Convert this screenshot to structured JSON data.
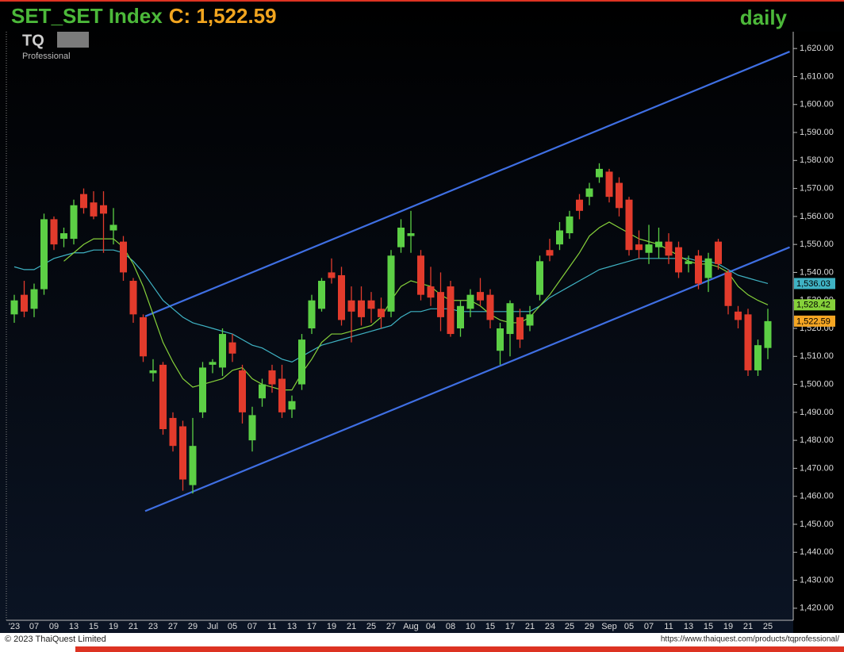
{
  "chart_data": {
    "type": "candlestick",
    "title": "SET_SET Index",
    "close_text": "C: 1,522.59",
    "period": "daily",
    "logo": "TQ",
    "logo_sub": "Professional",
    "copyright": "© 2023 ThaiQuest Limited",
    "url": "https://www.thaiquest.com/products/tqprofessional/",
    "up_color": "#5ccf45",
    "down_color": "#e23b2c",
    "categories": [
      "'23",
      null,
      "07",
      null,
      "09",
      null,
      "13",
      null,
      "15",
      null,
      "19",
      null,
      "21",
      null,
      "23",
      null,
      "27",
      null,
      "29",
      null,
      "Jul",
      null,
      "05",
      null,
      "07",
      null,
      "11",
      null,
      "13",
      null,
      "17",
      null,
      "19",
      null,
      "21",
      null,
      "25",
      null,
      "27",
      null,
      "Aug",
      null,
      "04",
      null,
      "08",
      null,
      "10",
      null,
      "15",
      null,
      "17",
      null,
      "21",
      null,
      "23",
      null,
      "25",
      null,
      "29",
      null,
      "Sep",
      null,
      "05",
      null,
      "07",
      null,
      "11",
      null,
      "13",
      null,
      "15",
      null,
      "19",
      null,
      "21",
      null,
      "25"
    ],
    "open": [
      1525,
      1532,
      1527,
      1534,
      1559,
      1552,
      1552,
      1568,
      1565,
      1564,
      1555,
      1551,
      1537,
      1524,
      1504,
      1507,
      1488,
      1485,
      1464,
      1490,
      1507,
      1506,
      1515,
      1505,
      1480,
      1495,
      1505,
      1502,
      1491,
      1500,
      1520,
      1527,
      1540,
      1539,
      1530,
      1530,
      1530,
      1527,
      1526,
      1549,
      1553,
      1546,
      1535,
      1533,
      1535,
      1520,
      1527,
      1533,
      1532,
      1512,
      1518,
      1524,
      1521,
      1532,
      1548,
      1550,
      1554,
      1566,
      1567,
      1574,
      1576,
      1572,
      1566,
      1550,
      1547,
      1549,
      1551,
      1549,
      1543,
      1546,
      1538,
      1551,
      1540,
      1526,
      1525,
      1505,
      1513
    ],
    "high": [
      1532,
      1537,
      1536,
      1561,
      1560,
      1556,
      1566,
      1570,
      1569,
      1569,
      1563,
      1553,
      1538,
      1525,
      1509,
      1508,
      1490,
      1487,
      1488,
      1508,
      1509,
      1520,
      1518,
      1507,
      1492,
      1502,
      1507,
      1507,
      1496,
      1518,
      1532,
      1538,
      1545,
      1542,
      1535,
      1535,
      1533,
      1531,
      1548,
      1559,
      1562,
      1548,
      1542,
      1540,
      1537,
      1530,
      1534,
      1538,
      1534,
      1522,
      1530,
      1527,
      1528,
      1546,
      1552,
      1558,
      1562,
      1568,
      1572,
      1579,
      1577,
      1574,
      1567,
      1555,
      1557,
      1556,
      1554,
      1551,
      1546,
      1548,
      1547,
      1552,
      1541,
      1528,
      1527,
      1516,
      1527
    ],
    "low": [
      1522,
      1524,
      1524,
      1532,
      1548,
      1549,
      1550,
      1561,
      1559,
      1547,
      1550,
      1537,
      1522,
      1508,
      1501,
      1482,
      1476,
      1462,
      1461,
      1488,
      1504,
      1503,
      1508,
      1486,
      1476,
      1492,
      1497,
      1488,
      1488,
      1498,
      1518,
      1526,
      1536,
      1521,
      1515,
      1521,
      1522,
      1520,
      1524,
      1547,
      1547,
      1530,
      1528,
      1519,
      1517,
      1517,
      1524,
      1528,
      1520,
      1507,
      1510,
      1513,
      1519,
      1530,
      1544,
      1548,
      1552,
      1559,
      1564,
      1572,
      1565,
      1560,
      1546,
      1545,
      1543,
      1545,
      1543,
      1538,
      1540,
      1534,
      1533,
      1541,
      1525,
      1520,
      1503,
      1503,
      1509
    ],
    "close": [
      1530,
      1526,
      1534,
      1559,
      1550,
      1554,
      1564,
      1563,
      1560,
      1561,
      1557,
      1540,
      1525,
      1510,
      1505,
      1484,
      1478,
      1466,
      1478,
      1506,
      1508,
      1518,
      1511,
      1490,
      1489,
      1500,
      1500,
      1490,
      1494,
      1516,
      1530,
      1537,
      1538,
      1523,
      1526,
      1524,
      1527,
      1524,
      1546,
      1556,
      1554,
      1532,
      1531,
      1524,
      1518,
      1528,
      1532,
      1530,
      1523,
      1520,
      1529,
      1516,
      1525,
      1544,
      1546,
      1555,
      1560,
      1562,
      1570,
      1577,
      1567,
      1563,
      1548,
      1548,
      1550,
      1551,
      1546,
      1540,
      1544,
      1536,
      1545,
      1543,
      1528,
      1523,
      1505,
      1514,
      1522.59
    ],
    "close_tag": "1,522.59",
    "close_tag_color": "#f5a623",
    "series": [
      {
        "color": "#3fb3c4",
        "last_label": "1,536.03",
        "values": [
          1542,
          1541,
          1541,
          1543,
          1545,
          1546,
          1547,
          1547,
          1548,
          1548,
          1548,
          1547,
          1544,
          1540,
          1535,
          1530,
          1527,
          1524,
          1522,
          1521,
          1520,
          1519,
          1518,
          1516,
          1514,
          1513,
          1511,
          1509,
          1508,
          1510,
          1512,
          1514,
          1515,
          1516,
          1517,
          1518,
          1519,
          1520,
          1521,
          1524,
          1526,
          1526,
          1527,
          1527,
          1527,
          1526,
          1526,
          1526,
          1526,
          1526,
          1526,
          1526,
          1526,
          1528,
          1531,
          1533,
          1535,
          1537,
          1539,
          1541,
          1542,
          1543,
          1544,
          1545,
          1545,
          1545,
          1545,
          1545,
          1545,
          1544,
          1544,
          1543,
          1541,
          1539,
          1538,
          1537,
          1536.03
        ]
      },
      {
        "color": "#86d13a",
        "last_label": "1,528.42",
        "values": [
          null,
          null,
          null,
          null,
          null,
          1544,
          1547,
          1550,
          1552,
          1552,
          1552,
          1549,
          1543,
          1535,
          1525,
          1515,
          1508,
          1502,
          1499,
          1500,
          1501,
          1502,
          1505,
          1506,
          1502,
          1500,
          1499,
          1498,
          1498,
          1504,
          1509,
          1515,
          1518,
          1518,
          1519,
          1520,
          1521,
          1524,
          1530,
          1535,
          1537,
          1536,
          1535,
          1532,
          1530,
          1530,
          1530,
          1528,
          1525,
          1523,
          1522,
          1522,
          1524,
          1528,
          1532,
          1537,
          1542,
          1547,
          1553,
          1556,
          1558,
          1556,
          1554,
          1552,
          1551,
          1550,
          1548,
          1546,
          1544,
          1543,
          1543,
          1542,
          1540,
          1535,
          1532,
          1530,
          1528.42
        ]
      }
    ],
    "trendlines": [
      {
        "color": "#3f6fe3",
        "x": [
          13.2,
          78.2
        ],
        "y": [
          1524.3,
          1618.9
        ]
      },
      {
        "color": "#3f6fe3",
        "x": [
          13.2,
          78.2
        ],
        "y": [
          1454.7,
          1549
        ]
      }
    ],
    "ylim": [
      1415.7,
      1626
    ],
    "yticks": [
      {
        "value": 1420,
        "label": "1,420.00"
      },
      {
        "value": 1430,
        "label": "1,430.00"
      },
      {
        "value": 1440,
        "label": "1,440.00"
      },
      {
        "value": 1450,
        "label": "1,450.00"
      },
      {
        "value": 1460,
        "label": "1,460.00"
      },
      {
        "value": 1470,
        "label": "1,470.00"
      },
      {
        "value": 1480,
        "label": "1,480.00"
      },
      {
        "value": 1490,
        "label": "1,490.00"
      },
      {
        "value": 1500,
        "label": "1,500.00"
      },
      {
        "value": 1510,
        "label": "1,510.00"
      },
      {
        "value": 1520,
        "label": "1,520.00"
      },
      {
        "value": 1530,
        "label": "1,530.00"
      },
      {
        "value": 1540,
        "label": "1,540.00"
      },
      {
        "value": 1550,
        "label": "1,550.00"
      },
      {
        "value": 1560,
        "label": "1,560.00"
      },
      {
        "value": 1570,
        "label": "1,570.00"
      },
      {
        "value": 1580,
        "label": "1,580.00"
      },
      {
        "value": 1590,
        "label": "1,590.00"
      },
      {
        "value": 1600,
        "label": "1,600.00"
      },
      {
        "value": 1610,
        "label": "1,610.00"
      },
      {
        "value": 1620,
        "label": "1,620.00"
      }
    ]
  }
}
